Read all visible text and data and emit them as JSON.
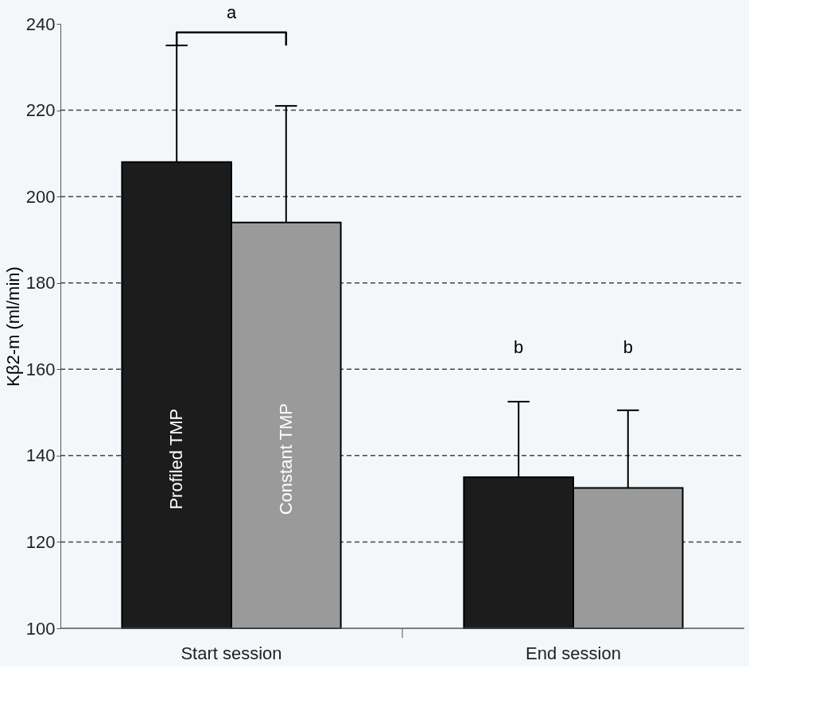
{
  "chart_data": {
    "type": "bar",
    "ylabel": "Kβ2-m (ml/min)",
    "categories": [
      "Start session",
      "End session"
    ],
    "series": [
      {
        "name": "Profiled TMP",
        "color": "#1c1c1c",
        "values": [
          208,
          135
        ],
        "errors": [
          [
            208,
            235
          ],
          [
            135,
            152.5
          ]
        ]
      },
      {
        "name": "Constant TMP",
        "color": "#9a9a9a",
        "values": [
          194,
          132.5
        ],
        "errors": [
          [
            194,
            221
          ],
          [
            132.5,
            150.5
          ]
        ]
      }
    ],
    "ylim": [
      100,
      240
    ],
    "yticks": [
      100,
      120,
      140,
      160,
      180,
      200,
      220,
      240
    ],
    "grid": "y",
    "line_style": "dashed",
    "legend": false,
    "annotations": [
      "a",
      "b",
      "b"
    ]
  }
}
